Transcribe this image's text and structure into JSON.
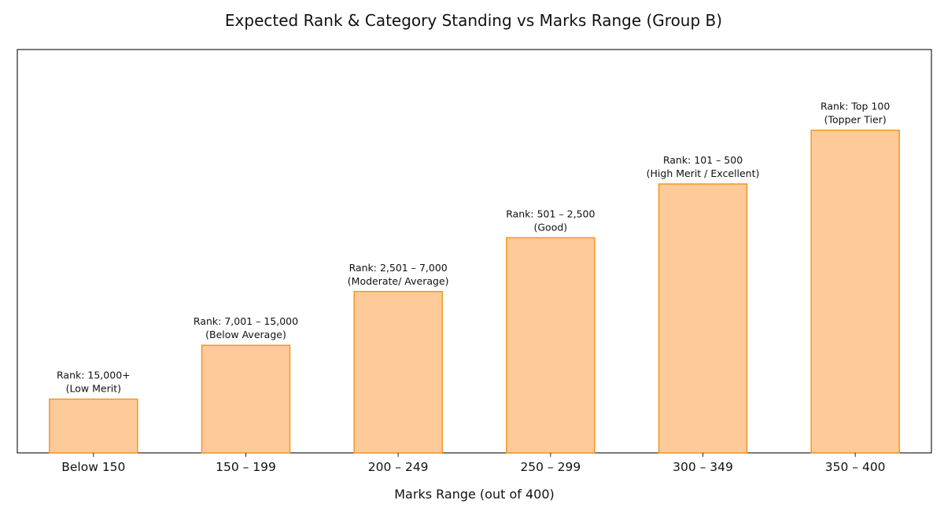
{
  "chart_data": {
    "type": "bar",
    "title": "Expected Rank & Category Standing vs Marks Range (Group B)",
    "xlabel": "Marks Range (out of 400)",
    "ylabel": "",
    "categories": [
      "Below 150",
      "150 – 199",
      "200 – 249",
      "250 – 299",
      "300 – 349",
      "350 – 400"
    ],
    "values": [
      1,
      2,
      3,
      4,
      5,
      6
    ],
    "ylim": [
      0,
      7.5
    ],
    "bar_labels": [
      [
        "Rank: 15,000+",
        "(Low Merit)"
      ],
      [
        "Rank: 7,001 – 15,000",
        "(Below Average)"
      ],
      [
        "Rank: 2,501 – 7,000",
        "(Moderate/ Average)"
      ],
      [
        "Rank: 501 – 2,500",
        "(Good)"
      ],
      [
        "Rank: 101 – 500",
        "(High Merit / Excellent)"
      ],
      [
        "Rank: Top 100",
        "(Topper Tier)"
      ]
    ],
    "y_ticks_visible": false,
    "grid": false,
    "colors": {
      "bar_fill": "#FFCA99",
      "bar_edge": "#F5961E",
      "axes": "#222222"
    }
  }
}
